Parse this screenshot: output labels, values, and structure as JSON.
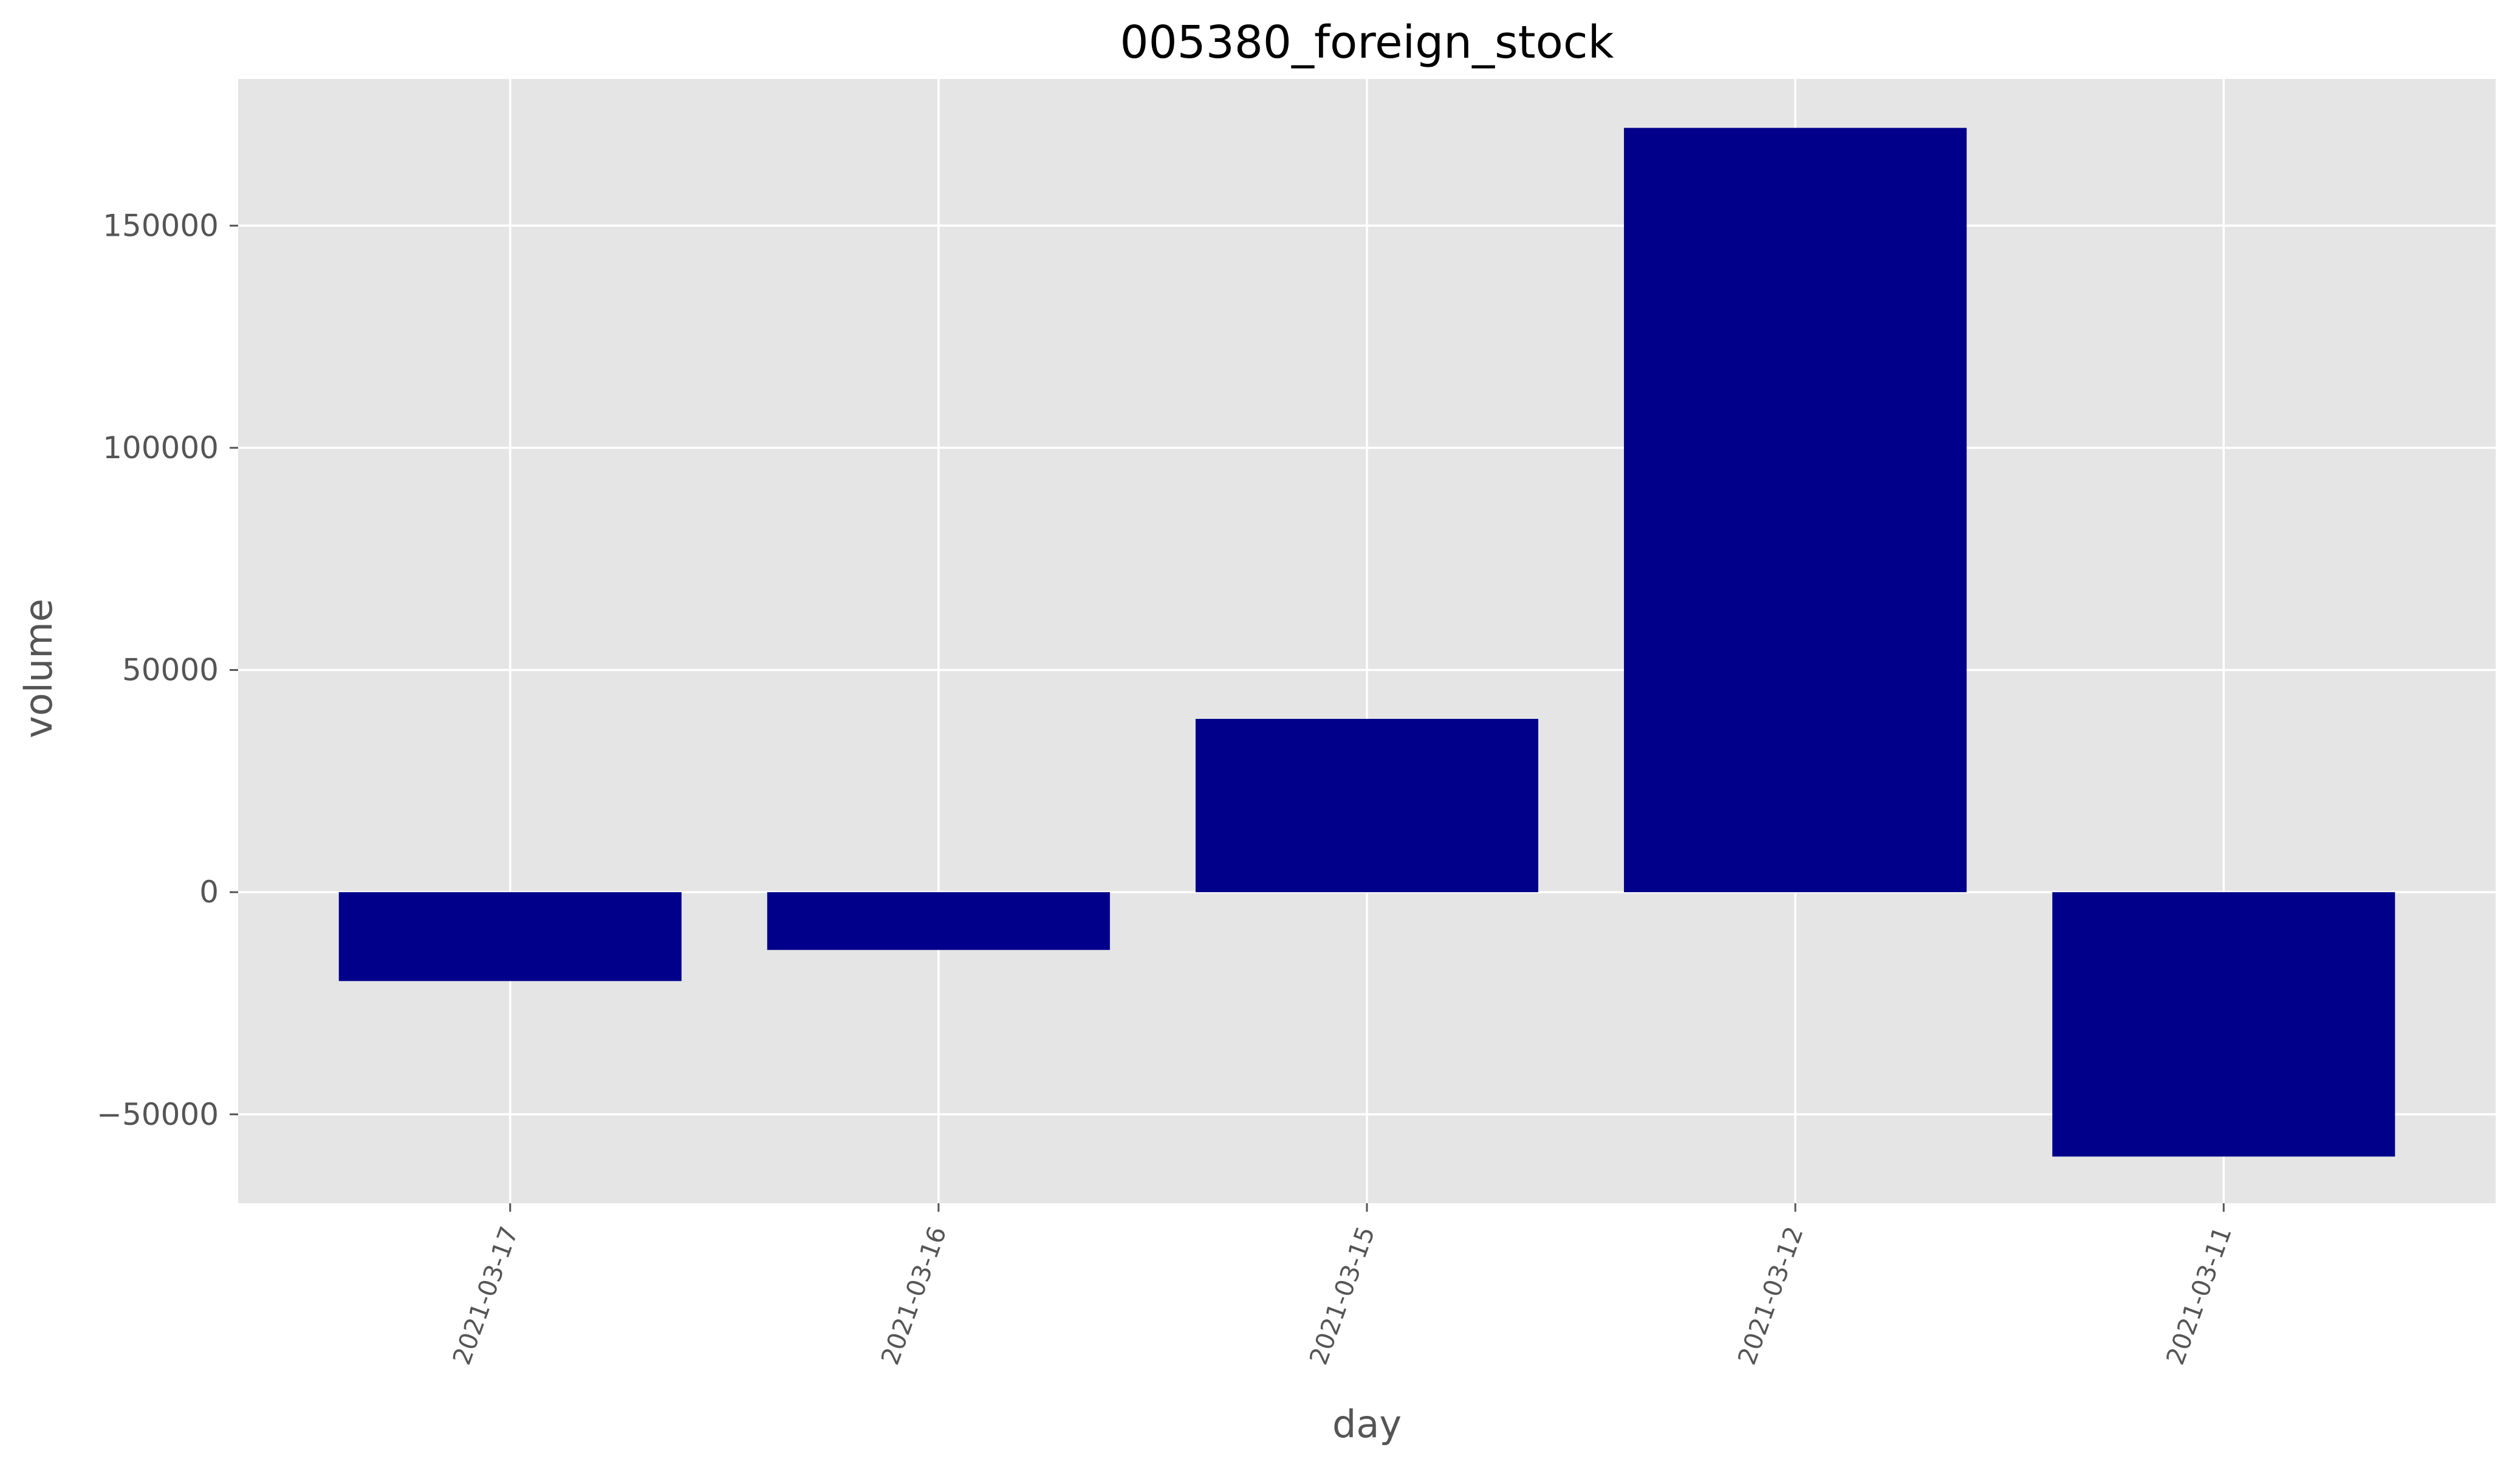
{
  "chart_data": {
    "type": "bar",
    "title": "005380_foreign_stock",
    "xlabel": "day",
    "ylabel": "volume",
    "categories": [
      "2021-03-17",
      "2021-03-16",
      "2021-03-15",
      "2021-03-12",
      "2021-03-11"
    ],
    "values": [
      -20000,
      -13000,
      39000,
      172000,
      -59500
    ],
    "ylim": [
      -70000,
      183000
    ],
    "yticks": [
      -50000,
      0,
      50000,
      100000,
      150000
    ],
    "ytick_labels": [
      "−50000",
      "0",
      "50000",
      "100000",
      "150000"
    ],
    "grid": true,
    "legend": "none",
    "bar_color": "#00008b",
    "background_color": "#e5e5e5",
    "grid_color": "#ffffff"
  }
}
